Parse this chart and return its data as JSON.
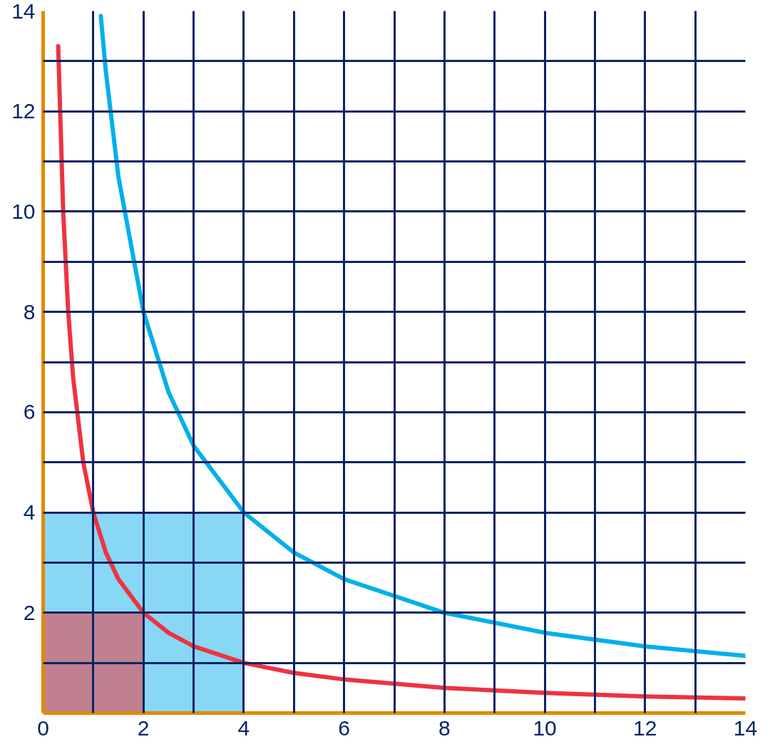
{
  "chart_data": {
    "type": "line",
    "xlim": [
      0,
      14
    ],
    "ylim": [
      0,
      14
    ],
    "xticks": [
      0,
      {
        "value": 1,
        "label": null
      },
      2,
      {
        "value": 3,
        "label": null
      },
      4,
      {
        "value": 5,
        "label": null
      },
      6,
      {
        "value": 7,
        "label": null
      },
      8,
      {
        "value": 9,
        "label": null
      },
      10,
      {
        "value": 11,
        "label": null
      },
      12,
      {
        "value": 13,
        "label": null
      },
      14
    ],
    "yticks": [
      {
        "value": 0,
        "label": null
      },
      {
        "value": 1,
        "label": null
      },
      2,
      {
        "value": 3,
        "label": null
      },
      4,
      {
        "value": 5,
        "label": null
      },
      6,
      {
        "value": 7,
        "label": null
      },
      8,
      {
        "value": 9,
        "label": null
      },
      10,
      {
        "value": 11,
        "label": null
      },
      12,
      {
        "value": 13,
        "label": null
      },
      14
    ],
    "grid": true,
    "series": [
      {
        "type": "area",
        "color": "#87d7f5",
        "x": [
          0,
          4
        ],
        "values": [
          4,
          4
        ]
      },
      {
        "type": "area",
        "color": "#c08090",
        "x": [
          0,
          2
        ],
        "values": [
          2,
          2
        ]
      },
      {
        "color": "#ee3340",
        "x": [
          0.3,
          0.4,
          0.5,
          0.6,
          0.8,
          1,
          1.25,
          1.5,
          2,
          2.5,
          3,
          4,
          5,
          6,
          8,
          10,
          12,
          14
        ],
        "values": [
          13.3,
          10,
          8,
          6.67,
          5,
          4,
          3.2,
          2.67,
          2,
          1.6,
          1.33,
          1,
          0.8,
          0.67,
          0.5,
          0.4,
          0.33,
          0.29
        ]
      },
      {
        "color": "#00b0ea",
        "x": [
          1.15,
          1.25,
          1.5,
          2,
          2.5,
          3,
          4,
          5,
          6,
          8,
          10,
          12,
          14
        ],
        "values": [
          13.9,
          12.8,
          10.7,
          8,
          6.4,
          5.33,
          4,
          3.2,
          2.67,
          2,
          1.6,
          1.33,
          1.14
        ]
      }
    ]
  }
}
